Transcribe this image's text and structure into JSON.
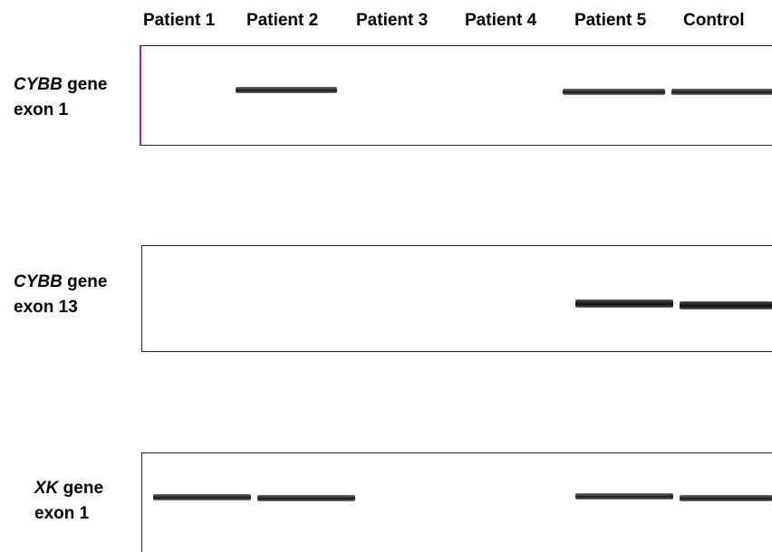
{
  "lanes": [
    "Patient 1",
    "Patient 2",
    "Patient 3",
    "Patient 4",
    "Patient 5",
    "Control"
  ],
  "panels": [
    {
      "gene": "CYBB",
      "gene_suffix": " gene",
      "exon": "exon 1",
      "bands_present": [
        false,
        true,
        false,
        false,
        true,
        true
      ]
    },
    {
      "gene": "CYBB",
      "gene_suffix": " gene",
      "exon": "exon 13",
      "bands_present": [
        false,
        false,
        false,
        false,
        true,
        true
      ]
    },
    {
      "gene": "XK",
      "gene_suffix": " gene",
      "exon": "exon 1",
      "bands_present": [
        true,
        true,
        false,
        false,
        true,
        true
      ]
    }
  ],
  "colors": {
    "band": "#1a1a1a",
    "panel_border": "#222222",
    "left_marker": "#b2217a",
    "background": "#ffffff"
  }
}
